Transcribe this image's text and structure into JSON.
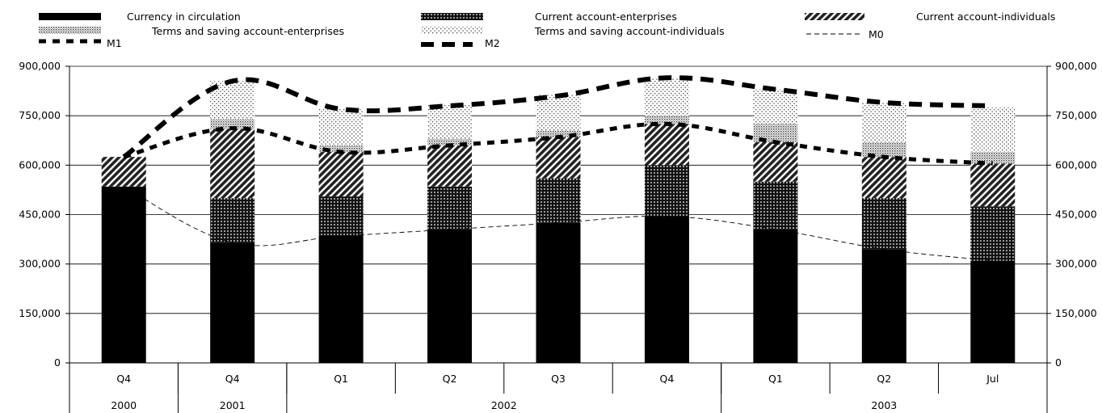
{
  "chart_data": {
    "type": "bar",
    "title": "",
    "xlabel": "",
    "ylabel": "",
    "ylim": [
      0,
      900000
    ],
    "yticks": [
      "0",
      "150,000",
      "300,000",
      "450,000",
      "600,000",
      "750,000",
      "900,000"
    ],
    "ytick_values": [
      0,
      150000,
      300000,
      450000,
      600000,
      750000,
      900000
    ],
    "secondary_axis": "mirror",
    "grid": true,
    "legend_position": "top",
    "categories": [
      "Q4",
      "Q4",
      "Q1",
      "Q2",
      "Q3",
      "Q4",
      "Q1",
      "Q2",
      "Jul"
    ],
    "category_groups": [
      {
        "label": "2000",
        "span": 1
      },
      {
        "label": "2001",
        "span": 1
      },
      {
        "label": "2002",
        "span": 4
      },
      {
        "label": "2003",
        "span": 3
      }
    ],
    "bar_series": [
      {
        "name": "Currency in circulation",
        "pattern": "solid",
        "values": [
          535000,
          365000,
          385000,
          405000,
          425000,
          445000,
          405000,
          345000,
          310000
        ]
      },
      {
        "name": "Current account-enterprises",
        "pattern": "dots",
        "values": [
          0,
          135000,
          120000,
          130000,
          135000,
          155000,
          145000,
          155000,
          165000
        ]
      },
      {
        "name": "Current account-individuals",
        "pattern": "diagonal",
        "values": [
          90000,
          210000,
          135000,
          125000,
          125000,
          125000,
          120000,
          125000,
          130000
        ]
      },
      {
        "name": "Terms and saving account-enterprises",
        "pattern": "dense-dots",
        "values": [
          0,
          30000,
          20000,
          20000,
          20000,
          25000,
          55000,
          45000,
          35000
        ]
      },
      {
        "name": "Terms and saving account-individuals",
        "pattern": "sparse-dots",
        "values": [
          0,
          115000,
          110000,
          105000,
          110000,
          115000,
          105000,
          120000,
          135000
        ]
      }
    ],
    "line_series": [
      {
        "name": "M1",
        "style": "thick-dash-small",
        "values": [
          625000,
          712000,
          640000,
          660000,
          685000,
          725000,
          670000,
          625000,
          605000
        ]
      },
      {
        "name": "M2",
        "style": "thick-dash-large",
        "values": [
          625000,
          855000,
          770000,
          780000,
          810000,
          865000,
          830000,
          790000,
          780000
        ]
      },
      {
        "name": "M0",
        "style": "thin-dash",
        "values": [
          535000,
          365000,
          385000,
          405000,
          425000,
          445000,
          405000,
          345000,
          310000
        ]
      }
    ]
  }
}
